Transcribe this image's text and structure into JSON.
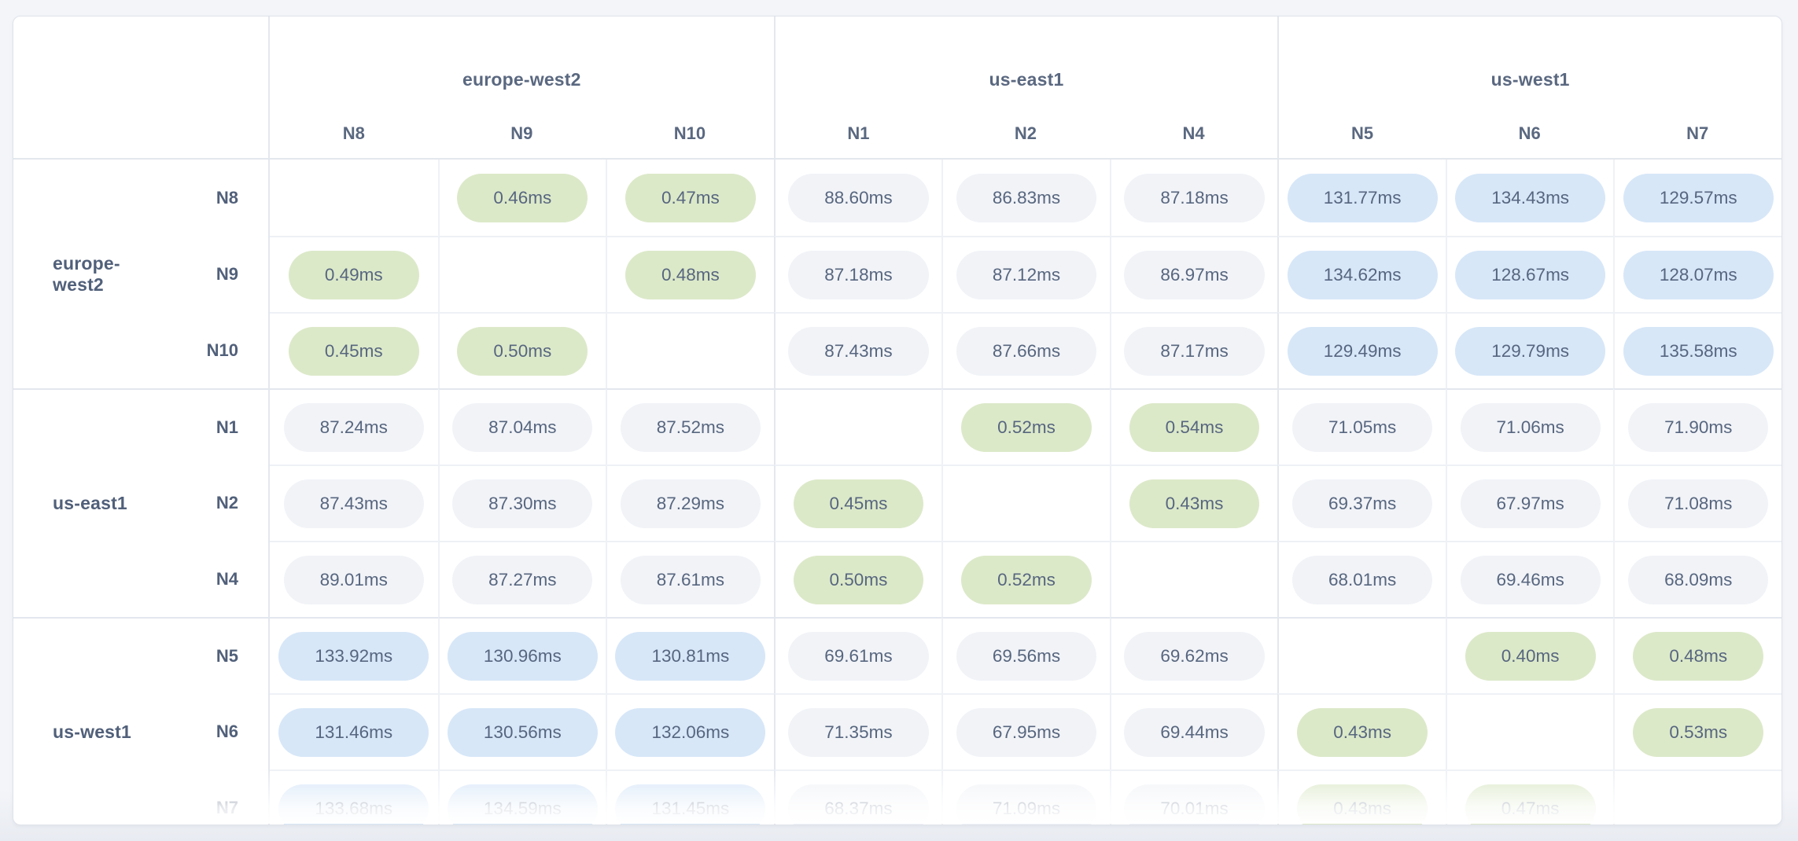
{
  "matrix": {
    "unit": "ms",
    "column_groups": [
      {
        "region": "europe-west2",
        "nodes": [
          "N8",
          "N9",
          "N10"
        ]
      },
      {
        "region": "us-east1",
        "nodes": [
          "N1",
          "N2",
          "N4"
        ]
      },
      {
        "region": "us-west1",
        "nodes": [
          "N5",
          "N6",
          "N7"
        ]
      }
    ],
    "row_groups": [
      {
        "region": "europe-west2",
        "rows": [
          {
            "node": "N8",
            "cells": [
              {
                "value": "",
                "type": "self"
              },
              {
                "value": "0.46ms",
                "type": "low"
              },
              {
                "value": "0.47ms",
                "type": "low"
              },
              {
                "value": "88.60ms",
                "type": "mid"
              },
              {
                "value": "86.83ms",
                "type": "mid"
              },
              {
                "value": "87.18ms",
                "type": "mid"
              },
              {
                "value": "131.77ms",
                "type": "high"
              },
              {
                "value": "134.43ms",
                "type": "high"
              },
              {
                "value": "129.57ms",
                "type": "high"
              }
            ]
          },
          {
            "node": "N9",
            "cells": [
              {
                "value": "0.49ms",
                "type": "low"
              },
              {
                "value": "",
                "type": "self"
              },
              {
                "value": "0.48ms",
                "type": "low"
              },
              {
                "value": "87.18ms",
                "type": "mid"
              },
              {
                "value": "87.12ms",
                "type": "mid"
              },
              {
                "value": "86.97ms",
                "type": "mid"
              },
              {
                "value": "134.62ms",
                "type": "high"
              },
              {
                "value": "128.67ms",
                "type": "high"
              },
              {
                "value": "128.07ms",
                "type": "high"
              }
            ]
          },
          {
            "node": "N10",
            "cells": [
              {
                "value": "0.45ms",
                "type": "low"
              },
              {
                "value": "0.50ms",
                "type": "low"
              },
              {
                "value": "",
                "type": "self"
              },
              {
                "value": "87.43ms",
                "type": "mid"
              },
              {
                "value": "87.66ms",
                "type": "mid"
              },
              {
                "value": "87.17ms",
                "type": "mid"
              },
              {
                "value": "129.49ms",
                "type": "high"
              },
              {
                "value": "129.79ms",
                "type": "high"
              },
              {
                "value": "135.58ms",
                "type": "high"
              }
            ]
          }
        ]
      },
      {
        "region": "us-east1",
        "rows": [
          {
            "node": "N1",
            "cells": [
              {
                "value": "87.24ms",
                "type": "mid"
              },
              {
                "value": "87.04ms",
                "type": "mid"
              },
              {
                "value": "87.52ms",
                "type": "mid"
              },
              {
                "value": "",
                "type": "self"
              },
              {
                "value": "0.52ms",
                "type": "low"
              },
              {
                "value": "0.54ms",
                "type": "low"
              },
              {
                "value": "71.05ms",
                "type": "mid"
              },
              {
                "value": "71.06ms",
                "type": "mid"
              },
              {
                "value": "71.90ms",
                "type": "mid"
              }
            ]
          },
          {
            "node": "N2",
            "cells": [
              {
                "value": "87.43ms",
                "type": "mid"
              },
              {
                "value": "87.30ms",
                "type": "mid"
              },
              {
                "value": "87.29ms",
                "type": "mid"
              },
              {
                "value": "0.45ms",
                "type": "low"
              },
              {
                "value": "",
                "type": "self"
              },
              {
                "value": "0.43ms",
                "type": "low"
              },
              {
                "value": "69.37ms",
                "type": "mid"
              },
              {
                "value": "67.97ms",
                "type": "mid"
              },
              {
                "value": "71.08ms",
                "type": "mid"
              }
            ]
          },
          {
            "node": "N4",
            "cells": [
              {
                "value": "89.01ms",
                "type": "mid"
              },
              {
                "value": "87.27ms",
                "type": "mid"
              },
              {
                "value": "87.61ms",
                "type": "mid"
              },
              {
                "value": "0.50ms",
                "type": "low"
              },
              {
                "value": "0.52ms",
                "type": "low"
              },
              {
                "value": "",
                "type": "self"
              },
              {
                "value": "68.01ms",
                "type": "mid"
              },
              {
                "value": "69.46ms",
                "type": "mid"
              },
              {
                "value": "68.09ms",
                "type": "mid"
              }
            ]
          }
        ]
      },
      {
        "region": "us-west1",
        "rows": [
          {
            "node": "N5",
            "cells": [
              {
                "value": "133.92ms",
                "type": "high"
              },
              {
                "value": "130.96ms",
                "type": "high"
              },
              {
                "value": "130.81ms",
                "type": "high"
              },
              {
                "value": "69.61ms",
                "type": "mid"
              },
              {
                "value": "69.56ms",
                "type": "mid"
              },
              {
                "value": "69.62ms",
                "type": "mid"
              },
              {
                "value": "",
                "type": "self"
              },
              {
                "value": "0.40ms",
                "type": "low"
              },
              {
                "value": "0.48ms",
                "type": "low"
              }
            ]
          },
          {
            "node": "N6",
            "cells": [
              {
                "value": "131.46ms",
                "type": "high"
              },
              {
                "value": "130.56ms",
                "type": "high"
              },
              {
                "value": "132.06ms",
                "type": "high"
              },
              {
                "value": "71.35ms",
                "type": "mid"
              },
              {
                "value": "67.95ms",
                "type": "mid"
              },
              {
                "value": "69.44ms",
                "type": "mid"
              },
              {
                "value": "0.43ms",
                "type": "low"
              },
              {
                "value": "",
                "type": "self"
              },
              {
                "value": "0.53ms",
                "type": "low"
              }
            ]
          },
          {
            "node": "N7",
            "cells": [
              {
                "value": "133.68ms",
                "type": "high"
              },
              {
                "value": "134.59ms",
                "type": "high"
              },
              {
                "value": "131.45ms",
                "type": "high"
              },
              {
                "value": "68.37ms",
                "type": "mid"
              },
              {
                "value": "71.09ms",
                "type": "mid"
              },
              {
                "value": "70.01ms",
                "type": "mid"
              },
              {
                "value": "0.43ms",
                "type": "low"
              },
              {
                "value": "0.47ms",
                "type": "low"
              },
              {
                "value": "",
                "type": "self"
              }
            ]
          }
        ]
      }
    ]
  },
  "colors": {
    "latency_low_green": "#dce9c9",
    "latency_mid_gray": "#f1f3f7",
    "latency_high_blue": "#d7e7f8",
    "pill_text": "#57667f",
    "header_text": "#5a6880",
    "page_background": "#f3f5f9",
    "card_background": "#ffffff"
  }
}
